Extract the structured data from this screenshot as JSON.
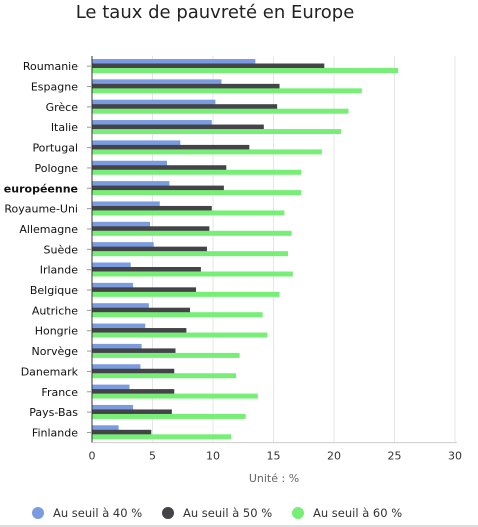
{
  "chart_data": {
    "type": "bar",
    "orientation": "horizontal",
    "title": "Le taux de pauvreté en Europe",
    "xlabel": "Unité : %",
    "xlim": [
      0,
      30
    ],
    "xticks": [
      0,
      5,
      10,
      15,
      20,
      25,
      30
    ],
    "grid": true,
    "legend_position": "bottom",
    "categories": [
      "Roumanie",
      "Espagne",
      "Grèce",
      "Italie",
      "Portugal",
      "Pologne",
      "Union européenne",
      "Royaume-Uni",
      "Allemagne",
      "Suède",
      "Irlande",
      "Belgique",
      "Autriche",
      "Hongrie",
      "Norvège",
      "Danemark",
      "France",
      "Pays-Bas",
      "Finlande"
    ],
    "highlight_category": "Union européenne",
    "series": [
      {
        "name": "Au seuil à 40 %",
        "color": "#7b9be0",
        "values": [
          13.5,
          10.7,
          10.2,
          9.9,
          7.3,
          6.2,
          6.4,
          5.6,
          4.8,
          5.1,
          3.2,
          3.4,
          4.7,
          4.4,
          4.1,
          4.0,
          3.1,
          3.4,
          2.2
        ]
      },
      {
        "name": "Au seuil à 50 %",
        "color": "#434348",
        "values": [
          19.2,
          15.5,
          15.3,
          14.2,
          13.0,
          11.1,
          10.9,
          9.9,
          9.7,
          9.5,
          9.0,
          8.6,
          8.1,
          7.8,
          6.9,
          6.8,
          6.8,
          6.6,
          4.9
        ]
      },
      {
        "name": "Au seuil à 60 %",
        "color": "#77ef77",
        "values": [
          25.3,
          22.3,
          21.2,
          20.6,
          19.0,
          17.3,
          17.3,
          15.9,
          16.5,
          16.2,
          16.6,
          15.5,
          14.1,
          14.5,
          12.2,
          11.9,
          13.7,
          12.7,
          11.5
        ]
      }
    ]
  }
}
